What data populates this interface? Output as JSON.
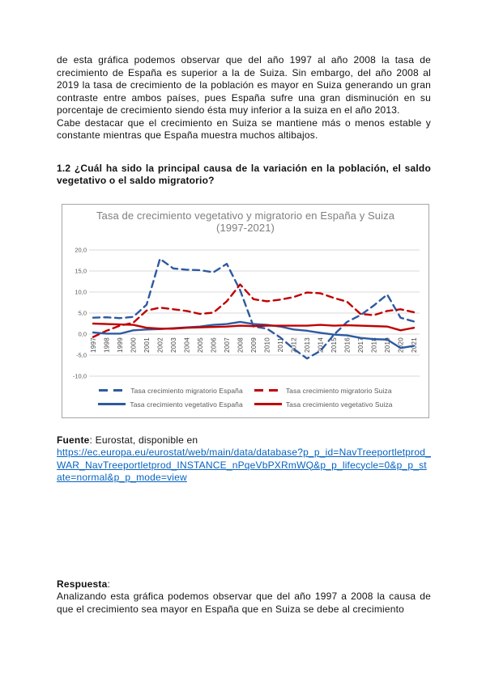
{
  "page": {
    "intro_paragraph_1": "de esta gráfica podemos observar que del año 1997 al año 2008 la tasa de crecimiento de España es superior a la de Suiza. Sin embargo, del año 2008 al 2019 la tasa de crecimiento de la población es mayor en Suiza generando un gran contraste entre ambos países, pues España sufre una gran disminución en su porcentaje de crecimiento siendo ésta muy inferior a la suiza en el año 2013.",
    "intro_paragraph_2": "Cabe destacar que el crecimiento en Suiza se mantiene más o menos estable y constante mientras que España muestra muchos altibajos.",
    "question_heading": "1.2 ¿Cuál ha sido la principal causa de la variación en la población, el saldo vegetativo o el saldo migratorio?",
    "fuente": {
      "label": "Fuente",
      "rest": ": Eurostat, disponible en",
      "link": "https://ec.europa.eu/eurostat/web/main/data/database?p_p_id=NavTreeportletprod_WAR_NavTreeportletprod_INSTANCE_nPqeVbPXRmWQ&p_p_lifecycle=0&p_p_state=normal&p_p_mode=view"
    },
    "respuesta": {
      "label": "Respuesta",
      "colon": ":",
      "text": "Analizando esta gráfica podemos observar que del año 1997 a 2008 la causa de que el crecimiento sea mayor en España que en Suiza se debe al crecimiento"
    }
  },
  "chart_data": {
    "type": "line",
    "title": "Tasa de crecimiento vegetativo y migratorio en España y Suiza (1997-2021)",
    "x": [
      "1997",
      "1998",
      "1999",
      "2000",
      "2001",
      "2002",
      "2003",
      "2004",
      "2005",
      "2006",
      "2007",
      "2008",
      "2009",
      "2010",
      "2011",
      "2012",
      "2013",
      "2014",
      "2015",
      "2016",
      "2017",
      "2018",
      "2019",
      "2020",
      "2021"
    ],
    "ylim": [
      -10,
      20
    ],
    "ytick_values": [
      20,
      15,
      10,
      5,
      0,
      -5,
      -10
    ],
    "ytick_labels": [
      "20,0",
      "15,0",
      "10,0",
      "5,0",
      "0,0",
      "-5,0",
      "-10,0"
    ],
    "grid": true,
    "legend_position": "bottom",
    "colors": {
      "espana": "#2d5aa0",
      "suiza": "#c00000",
      "gridline": "#d9d9d9",
      "axis_text": "#595959",
      "year_text": "#444444"
    },
    "series": [
      {
        "name": "Tasa crecimiento migratorio España",
        "color": "#2d5aa0",
        "dashed": true,
        "values": [
          3.9,
          4.0,
          3.8,
          4.1,
          7.0,
          17.9,
          15.6,
          15.3,
          15.2,
          14.7,
          16.7,
          10.4,
          1.8,
          1.3,
          -0.8,
          -3.5,
          -5.8,
          -4.0,
          -0.2,
          2.9,
          4.5,
          6.8,
          9.4,
          3.9,
          3.0
        ]
      },
      {
        "name": "Tasa crecimiento migratorio Suiza",
        "color": "#c00000",
        "dashed": true,
        "values": [
          -0.7,
          0.8,
          2.0,
          2.7,
          5.6,
          6.3,
          5.9,
          5.5,
          4.8,
          5.1,
          7.8,
          11.8,
          8.3,
          7.8,
          8.2,
          8.8,
          9.9,
          9.7,
          8.6,
          7.7,
          4.8,
          4.5,
          5.5,
          5.9,
          5.2
        ]
      },
      {
        "name": "Tasa crecimiento vegetativo España",
        "color": "#2d5aa0",
        "dashed": false,
        "values": [
          0.4,
          0.1,
          0.1,
          0.9,
          1.1,
          1.2,
          1.4,
          1.6,
          1.8,
          2.2,
          2.4,
          2.9,
          2.4,
          2.2,
          1.8,
          1.1,
          0.8,
          0.3,
          -0.1,
          -0.3,
          -0.9,
          -1.2,
          -1.3,
          -3.3,
          -2.8
        ]
      },
      {
        "name": "Tasa crecimiento vegetativo Suiza",
        "color": "#c00000",
        "dashed": false,
        "values": [
          2.5,
          2.4,
          2.3,
          2.2,
          1.5,
          1.3,
          1.3,
          1.5,
          1.6,
          1.7,
          1.8,
          2.0,
          1.9,
          2.0,
          2.0,
          2.0,
          2.0,
          2.2,
          2.0,
          2.1,
          2.0,
          1.9,
          1.8,
          0.9,
          1.5
        ]
      }
    ]
  }
}
